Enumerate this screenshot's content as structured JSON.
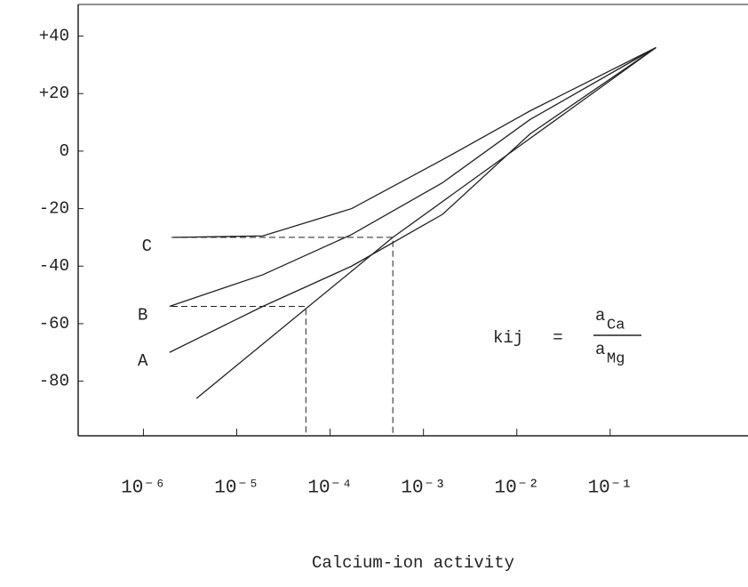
{
  "chart_data": {
    "type": "line",
    "x_label": "Calcium-ion activity",
    "xscale": "log",
    "xlim": [
      2e-07,
      3
    ],
    "xticks": [
      {
        "value": 1e-06,
        "label": "10⁻⁶"
      },
      {
        "value": 1e-05,
        "label": "10⁻⁵"
      },
      {
        "value": 0.0001,
        "label": "10⁻⁴"
      },
      {
        "value": 0.001,
        "label": "10⁻³"
      },
      {
        "value": 0.01,
        "label": "10⁻²"
      },
      {
        "value": 0.1,
        "label": "10⁻¹"
      }
    ],
    "ylim": [
      -99,
      51
    ],
    "yticks": [
      {
        "value": 40,
        "label": "+40"
      },
      {
        "value": 20,
        "label": "+20"
      },
      0,
      -20,
      -40,
      -60,
      -80
    ],
    "series": [
      {
        "color": "#222222",
        "x": [
          3.7e-06,
          0.00047,
          0.31
        ],
        "values": [
          -86,
          -30,
          36
        ]
      },
      {
        "name": "A",
        "color": "#222222",
        "x": [
          1.9e-06,
          1.9e-05,
          0.00017,
          0.0016,
          0.0139,
          0.31
        ],
        "values": [
          -70,
          -54,
          -40,
          -22,
          6,
          36
        ]
      },
      {
        "name": "B",
        "color": "#222222",
        "x": [
          1.9e-06,
          1.9e-05,
          0.00017,
          0.0016,
          0.0139,
          0.31
        ],
        "values": [
          -54,
          -43,
          -29,
          -11,
          11,
          36
        ]
      },
      {
        "name": "C",
        "color": "#222222",
        "x": [
          2.1e-06,
          1.9e-05,
          0.00017,
          0.0016,
          0.0139,
          0.31
        ],
        "values": [
          -30,
          -29.5,
          -20,
          -3,
          14,
          36
        ]
      }
    ],
    "guides": [
      {
        "x": 0.00047,
        "y": -30
      },
      {
        "x": 5.5e-05,
        "y": -54
      }
    ],
    "formula": {
      "lhs": "kij",
      "eq": "=",
      "num": "a",
      "num_sub": "Ca",
      "den": "a",
      "den_sub": "Mg"
    }
  }
}
